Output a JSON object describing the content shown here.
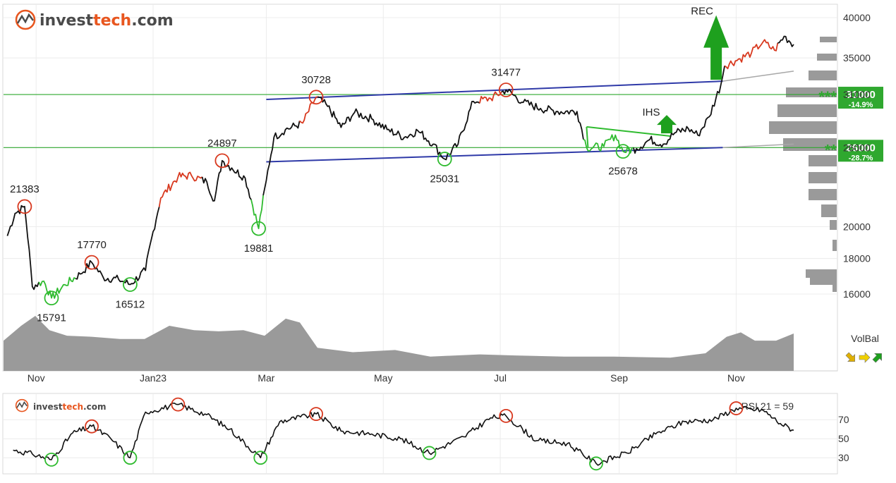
{
  "brand": {
    "name_part1": "invest",
    "name_part2": "tech",
    "name_part3": ".com",
    "color_dark": "#4a4a4a",
    "color_accent": "#e8561f"
  },
  "chart_data": [
    {
      "type": "line",
      "title": "",
      "x_labels": [
        "Nov",
        "Jan23",
        "Mar",
        "May",
        "Jul",
        "Sep",
        "Nov"
      ],
      "y_ticks": [
        16000,
        18000,
        20000,
        26000,
        31000,
        35000,
        40000
      ],
      "y_scale": "log",
      "ylim": [
        15000,
        42000
      ],
      "grid": true,
      "price_series": {
        "name": "",
        "points": [
          [
            "2022-10-17",
            19400
          ],
          [
            "2022-10-21",
            20900
          ],
          [
            "2022-10-26",
            21383
          ],
          [
            "2022-10-30",
            16400
          ],
          [
            "2022-11-05",
            16700
          ],
          [
            "2022-11-09",
            15791
          ],
          [
            "2022-11-16",
            16500
          ],
          [
            "2022-11-24",
            17100
          ],
          [
            "2022-11-30",
            17770
          ],
          [
            "2022-12-06",
            16900
          ],
          [
            "2022-12-14",
            16800
          ],
          [
            "2022-12-20",
            16512
          ],
          [
            "2022-12-28",
            17300
          ],
          [
            "2023-01-05",
            22000
          ],
          [
            "2023-01-14",
            23600
          ],
          [
            "2023-01-21",
            23700
          ],
          [
            "2023-01-29",
            23200
          ],
          [
            "2023-02-02",
            21800
          ],
          [
            "2023-02-06",
            24897
          ],
          [
            "2023-02-11",
            24300
          ],
          [
            "2023-02-18",
            23500
          ],
          [
            "2023-02-25",
            19881
          ],
          [
            "2023-03-01",
            23300
          ],
          [
            "2023-03-05",
            26900
          ],
          [
            "2023-03-11",
            27600
          ],
          [
            "2023-03-20",
            28200
          ],
          [
            "2023-03-27",
            30728
          ],
          [
            "2023-04-02",
            29800
          ],
          [
            "2023-04-09",
            27800
          ],
          [
            "2023-04-16",
            29200
          ],
          [
            "2023-04-25",
            28600
          ],
          [
            "2023-05-03",
            27600
          ],
          [
            "2023-05-12",
            26900
          ],
          [
            "2023-05-19",
            27500
          ],
          [
            "2023-05-27",
            26300
          ],
          [
            "2023-06-02",
            25031
          ],
          [
            "2023-06-09",
            26300
          ],
          [
            "2023-06-17",
            30300
          ],
          [
            "2023-06-26",
            30600
          ],
          [
            "2023-07-04",
            31477
          ],
          [
            "2023-07-13",
            30200
          ],
          [
            "2023-07-22",
            29600
          ],
          [
            "2023-07-31",
            29300
          ],
          [
            "2023-08-10",
            29300
          ],
          [
            "2023-08-15",
            26000
          ],
          [
            "2023-08-24",
            26100
          ],
          [
            "2023-08-30",
            27100
          ],
          [
            "2023-09-03",
            25678
          ],
          [
            "2023-09-10",
            25900
          ],
          [
            "2023-09-17",
            26700
          ],
          [
            "2023-09-24",
            26300
          ],
          [
            "2023-09-30",
            27300
          ],
          [
            "2023-10-07",
            27700
          ],
          [
            "2023-10-12",
            27100
          ],
          [
            "2023-10-18",
            28800
          ],
          [
            "2023-10-24",
            32000
          ],
          [
            "2023-10-26",
            34100
          ],
          [
            "2023-11-03",
            34900
          ],
          [
            "2023-11-09",
            35600
          ],
          [
            "2023-11-15",
            36900
          ],
          [
            "2023-11-21",
            35900
          ],
          [
            "2023-11-26",
            37600
          ],
          [
            "2023-12-01",
            36600
          ]
        ]
      },
      "annotations": [
        {
          "label": "21383",
          "date": "2022-10-26",
          "value": 21383,
          "type": "high"
        },
        {
          "label": "15791",
          "date": "2022-11-09",
          "value": 15791,
          "type": "low"
        },
        {
          "label": "17770",
          "date": "2022-11-30",
          "value": 17770,
          "type": "high"
        },
        {
          "label": "16512",
          "date": "2022-12-20",
          "value": 16512,
          "type": "low"
        },
        {
          "label": "24897",
          "date": "2023-02-06",
          "value": 24897,
          "type": "high"
        },
        {
          "label": "19881",
          "date": "2023-02-25",
          "value": 19881,
          "type": "low"
        },
        {
          "label": "30728",
          "date": "2023-03-27",
          "value": 30728,
          "type": "high"
        },
        {
          "label": "25031",
          "date": "2023-06-02",
          "value": 25031,
          "type": "low"
        },
        {
          "label": "31477",
          "date": "2023-07-04",
          "value": 31477,
          "type": "high"
        },
        {
          "label": "25678",
          "date": "2023-09-03",
          "value": 25678,
          "type": "low"
        }
      ],
      "trend_channel": {
        "upper": [
          [
            "2023-03-01",
            30500
          ],
          [
            "2023-10-25",
            32400
          ]
        ],
        "lower": [
          [
            "2023-03-01",
            24800
          ],
          [
            "2023-10-25",
            26000
          ]
        ],
        "extension_upper_end": [
          "2023-12-01",
          33500
        ],
        "extension_lower_end": [
          "2023-12-01",
          26300
        ]
      },
      "pattern": {
        "label": "IHS",
        "neck": [
          [
            "2023-08-15",
            27850
          ],
          [
            "2023-09-28",
            27000
          ]
        ]
      },
      "signal": {
        "label": "REC",
        "date": "2023-10-26",
        "value": 40500
      },
      "levels": [
        {
          "value": 31000,
          "label": "31000",
          "change": "-14.9%",
          "stars": "***",
          "color": "#2fa82f"
        },
        {
          "value": 26000,
          "label": "26000",
          "change": "-28.7%",
          "stars": "**",
          "color": "#2fa82f"
        }
      ],
      "volume_balance": {
        "label": "VolBal",
        "signals": [
          "down",
          "neutral",
          "up"
        ]
      }
    },
    {
      "type": "line",
      "title": "",
      "label": "RSI 21 = 59",
      "y_ticks": [
        30,
        50,
        70
      ],
      "ylim": [
        15,
        90
      ],
      "series": {
        "name": "",
        "points": [
          [
            "2022-10-20",
            38
          ],
          [
            "2022-10-30",
            34
          ],
          [
            "2022-11-09",
            28
          ],
          [
            "2022-11-20",
            56
          ],
          [
            "2022-11-30",
            63
          ],
          [
            "2022-12-10",
            50
          ],
          [
            "2022-12-20",
            30
          ],
          [
            "2022-12-28",
            78
          ],
          [
            "2023-01-14",
            86
          ],
          [
            "2023-01-28",
            76
          ],
          [
            "2023-02-10",
            60
          ],
          [
            "2023-02-26",
            30
          ],
          [
            "2023-03-08",
            68
          ],
          [
            "2023-03-27",
            76
          ],
          [
            "2023-04-09",
            58
          ],
          [
            "2023-04-25",
            55
          ],
          [
            "2023-05-10",
            50
          ],
          [
            "2023-05-25",
            35
          ],
          [
            "2023-06-12",
            52
          ],
          [
            "2023-06-26",
            72
          ],
          [
            "2023-07-04",
            74
          ],
          [
            "2023-07-20",
            48
          ],
          [
            "2023-08-05",
            45
          ],
          [
            "2023-08-20",
            24
          ],
          [
            "2023-09-05",
            35
          ],
          [
            "2023-09-20",
            55
          ],
          [
            "2023-10-05",
            68
          ],
          [
            "2023-10-20",
            70
          ],
          [
            "2023-11-01",
            82
          ],
          [
            "2023-11-15",
            80
          ],
          [
            "2023-11-24",
            66
          ],
          [
            "2023-12-01",
            59
          ]
        ]
      },
      "annotations": [
        {
          "date": "2022-11-09",
          "value": 28,
          "type": "low"
        },
        {
          "date": "2022-11-30",
          "value": 63,
          "type": "high"
        },
        {
          "date": "2022-12-20",
          "value": 30,
          "type": "low"
        },
        {
          "date": "2023-01-14",
          "value": 86,
          "type": "high"
        },
        {
          "date": "2023-02-26",
          "value": 30,
          "type": "low"
        },
        {
          "date": "2023-03-27",
          "value": 76,
          "type": "high"
        },
        {
          "date": "2023-05-25",
          "value": 35,
          "type": "low"
        },
        {
          "date": "2023-07-04",
          "value": 74,
          "type": "high"
        },
        {
          "date": "2023-08-20",
          "value": 24,
          "type": "low"
        },
        {
          "date": "2023-11-01",
          "value": 82,
          "type": "high"
        }
      ]
    }
  ]
}
